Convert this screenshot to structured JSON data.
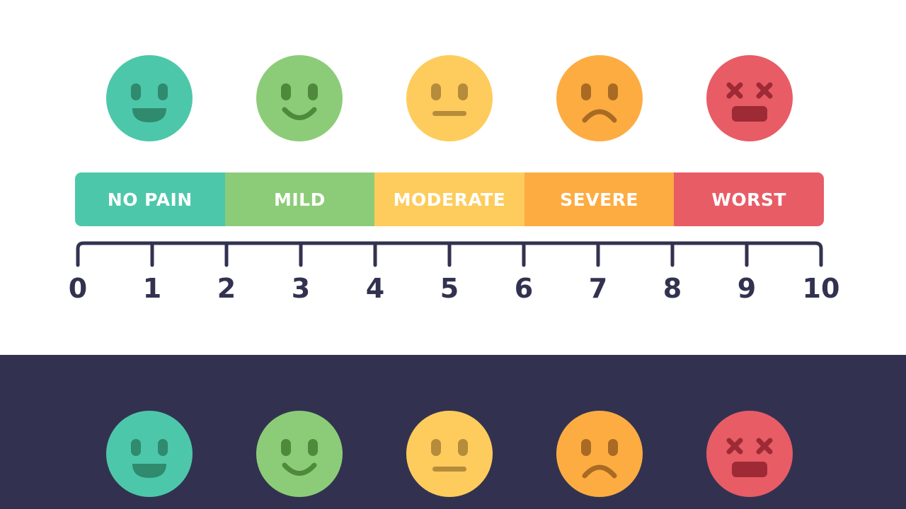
{
  "colors": {
    "no_pain": "#4dc7aa",
    "mild": "#8ccc78",
    "moderate": "#fecc5c",
    "severe": "#fdac42",
    "worst": "#e85c66",
    "ink": "#323250",
    "dark_band": "#323250"
  },
  "faces": [
    {
      "icon": "laughing-face-icon",
      "level": "no-pain"
    },
    {
      "icon": "smiling-face-icon",
      "level": "mild"
    },
    {
      "icon": "neutral-face-icon",
      "level": "moderate"
    },
    {
      "icon": "frowning-face-icon",
      "level": "severe"
    },
    {
      "icon": "dizzy-face-icon",
      "level": "worst"
    }
  ],
  "categories": [
    {
      "label": "NO PAIN",
      "color": "#4dc7aa"
    },
    {
      "label": "MILD",
      "color": "#8ccc78"
    },
    {
      "label": "MODERATE",
      "color": "#fecc5c"
    },
    {
      "label": "SEVERE",
      "color": "#fdac42"
    },
    {
      "label": "WORST",
      "color": "#e85c66"
    }
  ],
  "scale": {
    "min": 0,
    "max": 10,
    "ticks": [
      "0",
      "1",
      "2",
      "3",
      "4",
      "5",
      "6",
      "7",
      "8",
      "9",
      "10"
    ]
  }
}
